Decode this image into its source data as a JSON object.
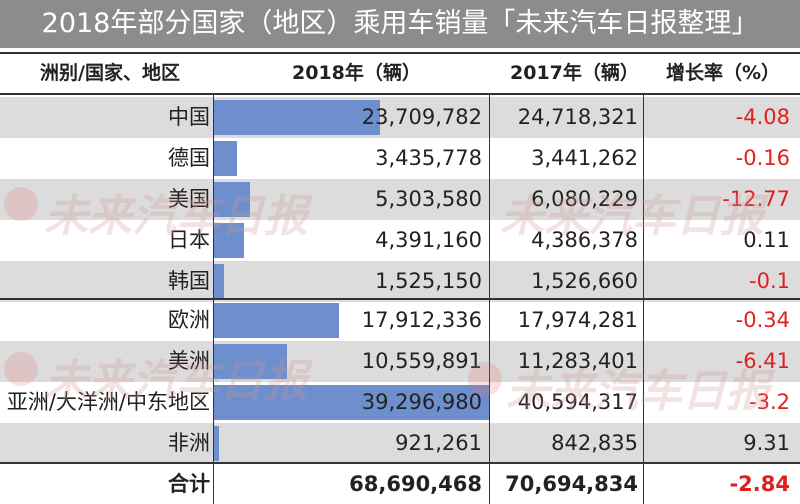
{
  "title": "2018年部分国家（地区）乘用车销量「未来汽车日报整理」",
  "headers": {
    "region": "洲别/国家、地区",
    "y2018": "2018年（辆）",
    "y2017": "2017年（辆）",
    "growth": "增长率（%）"
  },
  "watermark": "未来汽车日报",
  "colors": {
    "bar": "#6d8fcd",
    "negative": "#e02020",
    "shade": "#dcdcdc",
    "titlebar": "#8c8c8c"
  },
  "chart_data": {
    "type": "table",
    "bar_max": 39296980,
    "rows": [
      {
        "region": "中国",
        "v2018": 23709782,
        "v2018_text": "23,709,782",
        "v2017_text": "24,718,321",
        "growth": "-4.08"
      },
      {
        "region": "德国",
        "v2018": 3435778,
        "v2018_text": "3,435,778",
        "v2017_text": "3,441,262",
        "growth": "-0.16"
      },
      {
        "region": "美国",
        "v2018": 5303580,
        "v2018_text": "5,303,580",
        "v2017_text": "6,080,229",
        "growth": "-12.77"
      },
      {
        "region": "日本",
        "v2018": 4391160,
        "v2018_text": "4,391,160",
        "v2017_text": "4,386,378",
        "growth": "0.11"
      },
      {
        "region": "韩国",
        "v2018": 1525150,
        "v2018_text": "1,525,150",
        "v2017_text": "1,526,660",
        "growth": "-0.1"
      },
      {
        "region": "欧洲",
        "v2018": 17912336,
        "v2018_text": "17,912,336",
        "v2017_text": "17,974,281",
        "growth": "-0.34"
      },
      {
        "region": "美洲",
        "v2018": 10559891,
        "v2018_text": "10,559,891",
        "v2017_text": "11,283,401",
        "growth": "-6.41"
      },
      {
        "region": "亚洲/大洋洲/中东地区",
        "v2018": 39296980,
        "v2018_text": "39,296,980",
        "v2017_text": "40,594,317",
        "growth": "-3.2"
      },
      {
        "region": "非洲",
        "v2018": 921261,
        "v2018_text": "921,261",
        "v2017_text": "842,835",
        "growth": "9.31"
      }
    ],
    "total": {
      "label": "合计",
      "v2018_text": "68,690,468",
      "v2017_text": "70,694,834",
      "growth": "-2.84"
    }
  }
}
